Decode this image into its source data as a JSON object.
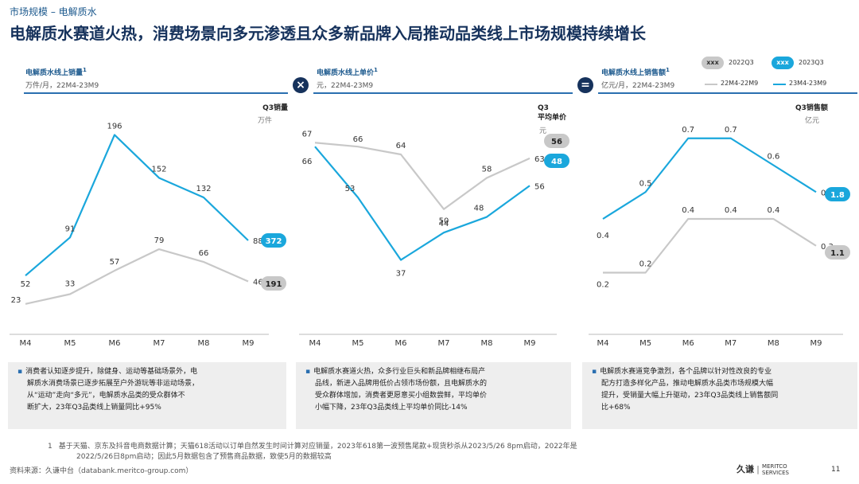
{
  "breadcrumb": "市场规模 – 电解质水",
  "title": "电解质水赛道火热，消费场景向多元渗透且众多新品牌入局推动品类线上市场规模持续增长",
  "operators": {
    "times": "×",
    "equals": "="
  },
  "legend": {
    "pill_text": "xxx",
    "q3_2022": "2022Q3",
    "q3_2023": "2023Q3",
    "series_2022": "22M4-22M9",
    "series_2023": "23M4-23M9"
  },
  "colors": {
    "blue": "#1aa7dc",
    "grey": "#c8c8c8",
    "navy": "#16325c"
  },
  "panels": [
    {
      "title": "电解质水线上销量",
      "sup": "1",
      "unit": "万件/月，22M4-23M9",
      "q3_label": "Q3销量",
      "q3_unit": "万件"
    },
    {
      "title": "电解质水线上单价",
      "sup": "1",
      "unit": "元，22M4-23M9",
      "q3_label": "Q3\n平均单价",
      "q3_unit": "元"
    },
    {
      "title": "电解质水线上销售额",
      "sup": "1",
      "unit": "亿元/月，22M4-23M9",
      "q3_label": "Q3销售额",
      "q3_unit": "亿元"
    }
  ],
  "chart_data": [
    {
      "type": "line",
      "categories": [
        "M4",
        "M5",
        "M6",
        "M7",
        "M8",
        "M9"
      ],
      "series": [
        {
          "name": "23M4-23M9",
          "values": [
            52,
            91,
            196,
            152,
            132,
            88
          ],
          "labels": [
            "52",
            "91",
            "196",
            "152",
            "132",
            "88"
          ]
        },
        {
          "name": "22M4-22M9",
          "values": [
            23,
            33,
            57,
            79,
            66,
            46
          ],
          "labels": [
            "23",
            "33",
            "57",
            "79",
            "66",
            "46"
          ]
        }
      ],
      "ylim": [
        0,
        220
      ],
      "q3": {
        "2023Q3": "372",
        "2022Q3": "191"
      }
    },
    {
      "type": "line",
      "categories": [
        "M4",
        "M5",
        "M6",
        "M7",
        "M8",
        "M9"
      ],
      "series": [
        {
          "name": "23M4-23M9",
          "values": [
            66,
            53,
            37,
            44,
            48,
            56
          ],
          "labels": [
            "66",
            "53",
            "37",
            "44",
            "48",
            "56"
          ]
        },
        {
          "name": "22M4-22M9",
          "values": [
            67,
            66,
            64,
            50,
            58,
            63
          ],
          "labels": [
            "67",
            "66",
            "64",
            "50",
            "58",
            "63"
          ]
        }
      ],
      "ylim": [
        20,
        75
      ],
      "q3": {
        "2022Q3": "56",
        "2023Q3": "48"
      }
    },
    {
      "type": "line",
      "categories": [
        "M4",
        "M5",
        "M6",
        "M7",
        "M8",
        "M9"
      ],
      "series": [
        {
          "name": "23M4-23M9",
          "values": [
            0.4,
            0.5,
            0.7,
            0.7,
            0.6,
            0.5
          ],
          "labels": [
            "0.4",
            "0.5",
            "0.7",
            "0.7",
            "0.6",
            "0.5"
          ]
        },
        {
          "name": "22M4-22M9",
          "values": [
            0.2,
            0.2,
            0.4,
            0.4,
            0.4,
            0.3
          ],
          "labels": [
            "0.2",
            "0.2",
            "0.4",
            "0.4",
            "0.4",
            "0.3"
          ]
        }
      ],
      "ylim": [
        0,
        0.8
      ],
      "q3": {
        "2023Q3": "1.8",
        "2022Q3": "1.1"
      }
    }
  ],
  "notes": [
    [
      "消费者认知逐步提升，除健身、运动等基础场景外，电",
      "解质水消费场景已逐步拓展至户外游玩等非运动场景，",
      "从“运动”走向“多元”，电解质水品类的受众群体不",
      "断扩大，23年Q3品类线上销量同比+95%"
    ],
    [
      "电解质水赛道火热，众多行业巨头和新品牌相继布局产",
      "品线，新进入品牌用低价占领市场份额，且电解质水的",
      "受众群体增加，消费者更愿意买小组数尝鲜，平均单价",
      "小幅下降，23年Q3品类线上平均单价同比-14%"
    ],
    [
      "电解质水赛道竞争激烈，各个品牌以针对性改良的专业",
      "配方打造多样化产品，推动电解质水品类市场规模大幅",
      "提升，受销量大幅上升驱动，23年Q3品类线上销售额同",
      "比+68%"
    ]
  ],
  "footnote": {
    "marker": "1",
    "line1": "基于天猫、京东及抖音电商数据计算；天猫618活动以订单自然发生时间计算对应销量，2023年618第一波预售尾款+现货秒杀从2023/5/26 8pm启动，2022年是",
    "line2": "2022/5/26日8pm启动；因此5月数据包含了预售商品数据，致使5月的数据较高"
  },
  "source": "资料来源：久谦中台（databank.meritco-group.com）",
  "logo": {
    "cn": "久谦",
    "en1": "MERITCO",
    "en2": "SERVICES"
  },
  "page_number": "11"
}
